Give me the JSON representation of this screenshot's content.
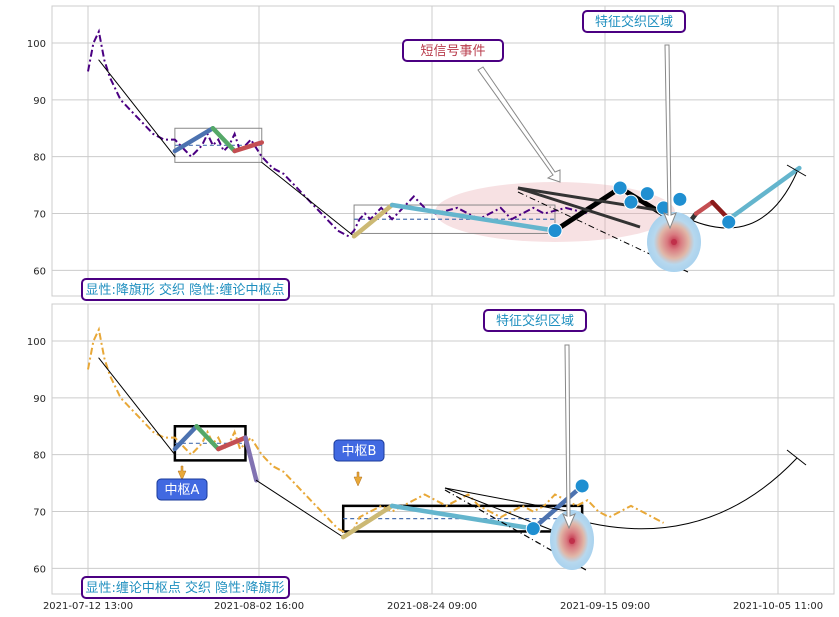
{
  "chart_data": [
    {
      "type": "line",
      "panel": "top",
      "ylim": [
        55.5,
        106.5
      ],
      "yticks": [
        60,
        70,
        80,
        90,
        100
      ],
      "grid": true,
      "series": [
        {
          "color": "#4b0082",
          "style": "dash-dot",
          "x": [
            0,
            1,
            2,
            3,
            4,
            6,
            8,
            10,
            12,
            14,
            16,
            18,
            19,
            20,
            21,
            22,
            23,
            24,
            25,
            26,
            27,
            28,
            29,
            30,
            32,
            34,
            36,
            38,
            40,
            42,
            43,
            44,
            45,
            46,
            47,
            48,
            49,
            50,
            51,
            52,
            53,
            54,
            55,
            56,
            57,
            58,
            59,
            60,
            61,
            62,
            64,
            66,
            68,
            70,
            72,
            74,
            76,
            78,
            80,
            82,
            84,
            86,
            88,
            90,
            92
          ],
          "y": [
            95,
            100,
            102,
            97,
            94,
            90,
            88,
            86,
            84,
            83,
            83,
            81,
            80,
            81,
            82,
            84,
            82,
            83,
            81,
            82,
            84,
            81,
            82,
            83,
            80,
            78,
            77,
            75,
            73,
            71,
            70,
            69,
            68,
            67,
            66.5,
            66,
            67,
            69,
            70,
            69,
            70,
            71,
            70,
            69,
            70,
            71,
            72,
            73,
            72,
            71,
            70,
            70.5,
            71,
            70,
            69,
            70,
            71,
            69,
            70,
            71,
            70,
            70.5,
            71,
            70.5,
            70
          ]
        }
      ],
      "segments": [
        {
          "x": [
            2,
            16
          ],
          "y": [
            97,
            80
          ],
          "color": "#000000"
        },
        {
          "x": [
            16,
            23
          ],
          "y": [
            81,
            85
          ],
          "color": "#4c72b0"
        },
        {
          "x": [
            23,
            27
          ],
          "y": [
            85,
            81
          ],
          "color": "#55a868"
        },
        {
          "x": [
            27,
            32
          ],
          "y": [
            81,
            82.5
          ],
          "color": "#c44e52"
        },
        {
          "x": [
            32,
            49
          ],
          "y": [
            79,
            66
          ],
          "color": "#000000"
        },
        {
          "x": [
            49,
            56
          ],
          "y": [
            66,
            71.5
          ],
          "color": "#ccb974"
        },
        {
          "x": [
            56,
            86
          ],
          "y": [
            71.5,
            67
          ],
          "color": "#64b5cd"
        },
        {
          "x": [
            86,
            98
          ],
          "y": [
            67,
            74.5
          ],
          "color": "#000000"
        },
        {
          "x": [
            98,
            110
          ],
          "y": [
            74.5,
            67.5
          ],
          "color": "#000000"
        },
        {
          "x": [
            110,
            112
          ],
          "y": [
            67.5,
            70
          ],
          "color": "#333333"
        },
        {
          "x": [
            112,
            115
          ],
          "y": [
            70,
            72
          ],
          "color": "#c44e52"
        },
        {
          "x": [
            115,
            118
          ],
          "y": [
            72,
            69
          ],
          "color": "#8c1b1b"
        },
        {
          "x": [
            118,
            131
          ],
          "y": [
            69,
            78
          ],
          "color": "#64b5cd"
        }
      ],
      "centers": [
        {
          "x1": 16,
          "x2": 32,
          "y1": 79,
          "y2": 85
        },
        {
          "x1": 49,
          "x2": 86,
          "y1": 66.5,
          "y2": 71.5
        }
      ],
      "markers": [
        {
          "x": 86,
          "y": 67
        },
        {
          "x": 98,
          "y": 74.5
        },
        {
          "x": 100,
          "y": 72
        },
        {
          "x": 103,
          "y": 73.5
        },
        {
          "x": 106,
          "y": 71
        },
        {
          "x": 109,
          "y": 72.5
        },
        {
          "x": 118,
          "y": 68.5
        }
      ],
      "annotations": {
        "legend": "显性:降旗形 交织 隐性:缠论中枢点",
        "short_signal": "短信号事件",
        "feature_zone": "特征交织区域"
      }
    },
    {
      "type": "line",
      "panel": "bottom",
      "ylim": [
        55.5,
        106.5
      ],
      "yticks": [
        60,
        70,
        80,
        90,
        100
      ],
      "grid": true,
      "xticks": [
        "2021-07-12 13:00",
        "2021-08-02 16:00",
        "2021-08-24 09:00",
        "2021-09-15 09:00",
        "2021-10-05 11:00"
      ],
      "series": [
        {
          "color": "#e8a838",
          "style": "dash-dot",
          "x": [
            0,
            1,
            2,
            3,
            4,
            6,
            8,
            10,
            12,
            14,
            16,
            18,
            19,
            20,
            21,
            22,
            23,
            24,
            25,
            26,
            27,
            28,
            29,
            30,
            32,
            34,
            36,
            38,
            40,
            42,
            43,
            44,
            45,
            46,
            47,
            48,
            49,
            50,
            52,
            54,
            56,
            58,
            60,
            62,
            64,
            66,
            68,
            70,
            72,
            74,
            76,
            78,
            80,
            82,
            84,
            86,
            88,
            90,
            92,
            94,
            96,
            98,
            100,
            102,
            104,
            106
          ],
          "y": [
            95,
            100,
            102,
            97,
            94,
            90,
            88,
            86,
            84,
            83,
            83,
            81,
            80,
            81,
            82,
            84,
            82,
            83,
            81,
            82,
            84,
            81,
            82,
            83,
            80,
            78,
            77,
            75,
            73,
            71,
            70,
            69,
            68,
            67,
            66.5,
            66,
            67,
            69,
            70,
            71,
            70,
            71,
            72,
            73,
            72,
            71,
            72,
            73,
            71,
            70,
            69,
            70,
            71,
            70,
            71,
            73,
            72,
            71,
            72,
            70,
            69,
            70,
            71,
            70,
            69,
            68
          ]
        }
      ],
      "segments": [
        {
          "x": [
            2,
            16
          ],
          "y": [
            97,
            80
          ],
          "color": "#000000"
        },
        {
          "x": [
            16,
            20
          ],
          "y": [
            81,
            85
          ],
          "color": "#4c72b0"
        },
        {
          "x": [
            20,
            24
          ],
          "y": [
            85,
            81
          ],
          "color": "#55a868"
        },
        {
          "x": [
            24,
            29
          ],
          "y": [
            81,
            83
          ],
          "color": "#c44e52"
        },
        {
          "x": [
            29,
            31
          ],
          "y": [
            83,
            75.5
          ],
          "color": "#8172b2"
        },
        {
          "x": [
            31,
            47
          ],
          "y": [
            75.5,
            65.5
          ],
          "color": "#000000"
        },
        {
          "x": [
            47,
            56
          ],
          "y": [
            65.5,
            71
          ],
          "color": "#ccb974"
        },
        {
          "x": [
            56,
            82
          ],
          "y": [
            71,
            67
          ],
          "color": "#64b5cd"
        },
        {
          "x": [
            82,
            91
          ],
          "y": [
            67,
            74.5
          ],
          "color": "#4c72b0"
        }
      ],
      "centers": [
        {
          "x1": 16,
          "x2": 29,
          "y1": 79,
          "y2": 85
        },
        {
          "x1": 47,
          "x2": 91,
          "y1": 66.5,
          "y2": 71
        }
      ],
      "markers": [
        {
          "x": 82,
          "y": 67
        },
        {
          "x": 91,
          "y": 74.5
        }
      ],
      "annotations": {
        "legend": "显性:缠论中枢点 交织 隐性:降旗形",
        "feature_zone": "特征交织区域",
        "center_a": "中枢A",
        "center_b": "中枢B"
      }
    }
  ]
}
